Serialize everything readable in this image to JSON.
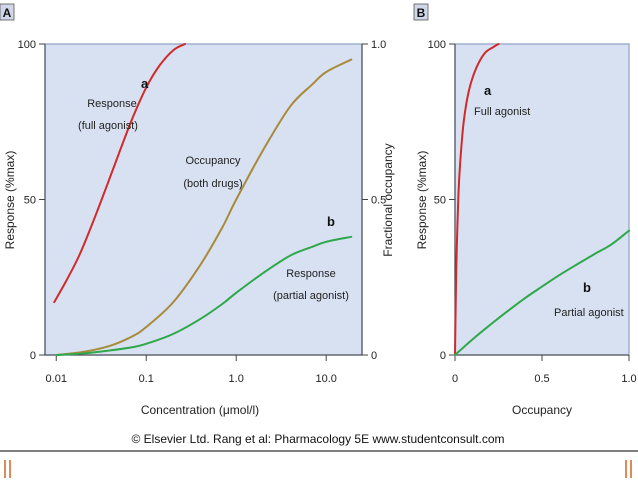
{
  "copyright": "© Elsevier Ltd. Rang et al: Pharmacology 5E www.studentconsult.com",
  "colors": {
    "plot_bg": "#d8e1f2",
    "full_agonist": "#d02a2a",
    "occupancy": "#a88a3a",
    "partial_agonist": "#2ea84a",
    "panel_label_bg": "#cfd7e8",
    "deco": "#e08a5a"
  },
  "chart_data": [
    {
      "panel_label": "A",
      "type": "line",
      "xscale": "log",
      "xlabel": "Concentration (μmol/l)",
      "ylabel": "Response (%max)",
      "y2label": "Fractional occupancy",
      "xlim": [
        0.0075,
        25
      ],
      "ylim": [
        0,
        100
      ],
      "y2lim": [
        0,
        1.0
      ],
      "xticks": [
        {
          "value": 0.01,
          "label": "0.01"
        },
        {
          "value": 0.1,
          "label": "0.1"
        },
        {
          "value": 1.0,
          "label": "1.0"
        },
        {
          "value": 10.0,
          "label": "10.0"
        }
      ],
      "yticks": [
        {
          "value": 0,
          "label": "0"
        },
        {
          "value": 50,
          "label": "50"
        },
        {
          "value": 100,
          "label": "100"
        }
      ],
      "y2ticks": [
        {
          "value": 0,
          "label": "0"
        },
        {
          "value": 0.5,
          "label": "0.5"
        },
        {
          "value": 1.0,
          "label": "1.0"
        }
      ],
      "series": [
        {
          "name": "Response (full agonist)",
          "key": "full_agonist",
          "x": [
            0.0095,
            0.013,
            0.018,
            0.025,
            0.035,
            0.05,
            0.07,
            0.1,
            0.14,
            0.2,
            0.27
          ],
          "y": [
            17,
            24,
            32,
            42,
            53,
            65,
            76,
            86,
            93,
            98,
            100
          ]
        },
        {
          "name": "Occupancy (both drugs)",
          "key": "occupancy",
          "x": [
            0.01,
            0.02,
            0.04,
            0.07,
            0.1,
            0.2,
            0.4,
            0.7,
            1.0,
            2.0,
            4.0,
            7.0,
            10.0,
            19.0
          ],
          "y": [
            0.0,
            0.01,
            0.03,
            0.06,
            0.09,
            0.17,
            0.29,
            0.41,
            0.5,
            0.66,
            0.8,
            0.87,
            0.91,
            0.95
          ]
        },
        {
          "name": "Response (partial agonist)",
          "key": "partial_agonist",
          "x": [
            0.01,
            0.02,
            0.04,
            0.07,
            0.1,
            0.2,
            0.4,
            0.7,
            1.0,
            2.0,
            4.0,
            7.0,
            10.0,
            19.0
          ],
          "y": [
            0,
            0.5,
            1.5,
            2.5,
            3.6,
            6.8,
            11.6,
            16.4,
            20,
            26.4,
            32,
            34.8,
            36.4,
            38
          ]
        }
      ],
      "annotations": [
        {
          "id": "a",
          "text": "a",
          "bold": true
        },
        {
          "id": "resp_full_1",
          "text": "Response"
        },
        {
          "id": "resp_full_2",
          "text": "(full agonist)"
        },
        {
          "id": "occ_1",
          "text": "Occupancy"
        },
        {
          "id": "occ_2",
          "text": "(both drugs)"
        },
        {
          "id": "b",
          "text": "b",
          "bold": true
        },
        {
          "id": "resp_part_1",
          "text": "Response"
        },
        {
          "id": "resp_part_2",
          "text": "(partial agonist)"
        }
      ]
    },
    {
      "panel_label": "B",
      "type": "line",
      "xscale": "linear",
      "xlabel": "Occupancy",
      "ylabel": "Response (%max)",
      "xlim": [
        0,
        1.0
      ],
      "ylim": [
        0,
        100
      ],
      "xticks": [
        {
          "value": 0,
          "label": "0"
        },
        {
          "value": 0.5,
          "label": "0.5"
        },
        {
          "value": 1.0,
          "label": "1.0"
        }
      ],
      "yticks": [
        {
          "value": 0,
          "label": "0"
        },
        {
          "value": 50,
          "label": "50"
        },
        {
          "value": 100,
          "label": "100"
        }
      ],
      "series": [
        {
          "name": "Full agonist",
          "key": "full_agonist",
          "x": [
            0,
            0.005,
            0.01,
            0.02,
            0.03,
            0.05,
            0.08,
            0.12,
            0.17,
            0.22,
            0.25
          ],
          "y": [
            0,
            20,
            34,
            52,
            62,
            75,
            85,
            92,
            97,
            99,
            100
          ]
        },
        {
          "name": "Partial agonist",
          "key": "partial_agonist",
          "x": [
            0,
            0.1,
            0.2,
            0.3,
            0.4,
            0.5,
            0.6,
            0.7,
            0.8,
            0.9,
            1.0
          ],
          "y": [
            0,
            5,
            9.6,
            14,
            18.2,
            22,
            25.7,
            29.1,
            32.4,
            35.6,
            40
          ]
        }
      ],
      "annotations": [
        {
          "id": "a",
          "text": "a",
          "bold": true
        },
        {
          "id": "full",
          "text": "Full agonist"
        },
        {
          "id": "b",
          "text": "b",
          "bold": true
        },
        {
          "id": "partial",
          "text": "Partial agonist"
        }
      ]
    }
  ]
}
